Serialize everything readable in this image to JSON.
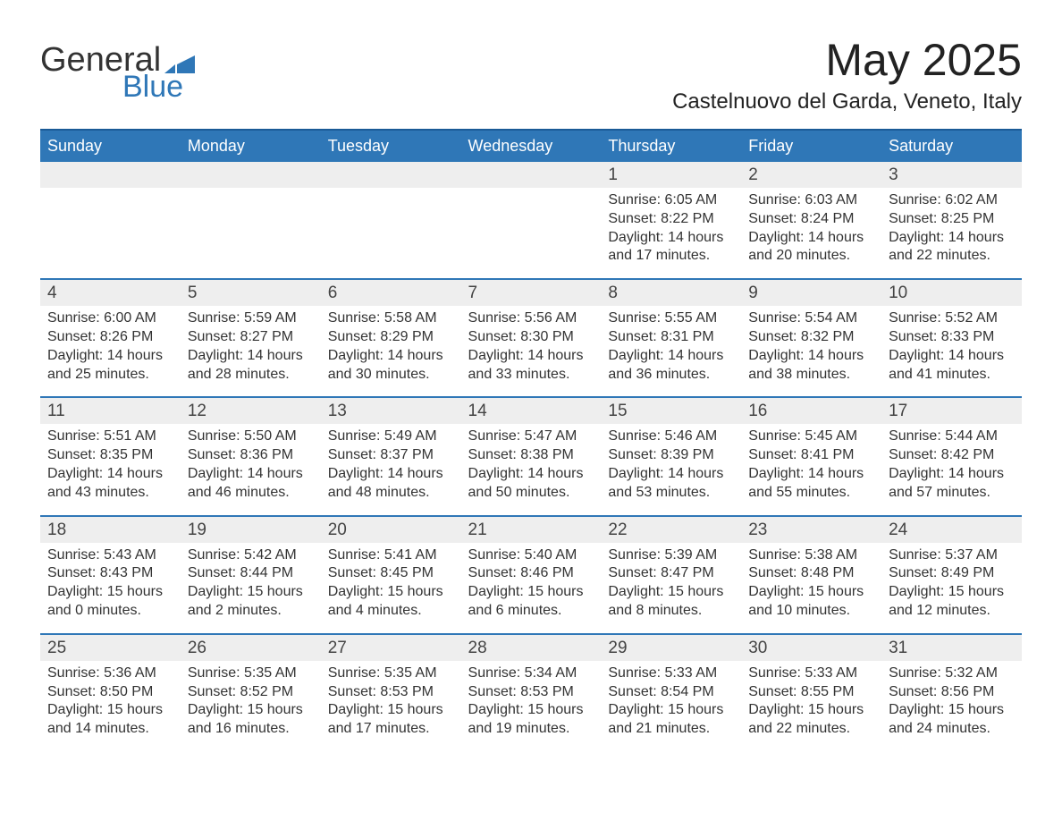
{
  "brand": {
    "word1": "General",
    "word2": "Blue"
  },
  "title": {
    "month": "May 2025",
    "location": "Castelnuovo del Garda, Veneto, Italy"
  },
  "weekdays": [
    "Sunday",
    "Monday",
    "Tuesday",
    "Wednesday",
    "Thursday",
    "Friday",
    "Saturday"
  ],
  "colors": {
    "header_bg": "#2f77b7",
    "header_text": "#ffffff",
    "rule": "#2f77b7",
    "alt_row": "#eeeeee",
    "text": "#333333",
    "logo_accent": "#2f77b7"
  },
  "grid": [
    [
      {
        "day": "",
        "sunrise": "",
        "sunset": "",
        "daylight": ""
      },
      {
        "day": "",
        "sunrise": "",
        "sunset": "",
        "daylight": ""
      },
      {
        "day": "",
        "sunrise": "",
        "sunset": "",
        "daylight": ""
      },
      {
        "day": "",
        "sunrise": "",
        "sunset": "",
        "daylight": ""
      },
      {
        "day": "1",
        "sunrise": "Sunrise: 6:05 AM",
        "sunset": "Sunset: 8:22 PM",
        "daylight": "Daylight: 14 hours and 17 minutes."
      },
      {
        "day": "2",
        "sunrise": "Sunrise: 6:03 AM",
        "sunset": "Sunset: 8:24 PM",
        "daylight": "Daylight: 14 hours and 20 minutes."
      },
      {
        "day": "3",
        "sunrise": "Sunrise: 6:02 AM",
        "sunset": "Sunset: 8:25 PM",
        "daylight": "Daylight: 14 hours and 22 minutes."
      }
    ],
    [
      {
        "day": "4",
        "sunrise": "Sunrise: 6:00 AM",
        "sunset": "Sunset: 8:26 PM",
        "daylight": "Daylight: 14 hours and 25 minutes."
      },
      {
        "day": "5",
        "sunrise": "Sunrise: 5:59 AM",
        "sunset": "Sunset: 8:27 PM",
        "daylight": "Daylight: 14 hours and 28 minutes."
      },
      {
        "day": "6",
        "sunrise": "Sunrise: 5:58 AM",
        "sunset": "Sunset: 8:29 PM",
        "daylight": "Daylight: 14 hours and 30 minutes."
      },
      {
        "day": "7",
        "sunrise": "Sunrise: 5:56 AM",
        "sunset": "Sunset: 8:30 PM",
        "daylight": "Daylight: 14 hours and 33 minutes."
      },
      {
        "day": "8",
        "sunrise": "Sunrise: 5:55 AM",
        "sunset": "Sunset: 8:31 PM",
        "daylight": "Daylight: 14 hours and 36 minutes."
      },
      {
        "day": "9",
        "sunrise": "Sunrise: 5:54 AM",
        "sunset": "Sunset: 8:32 PM",
        "daylight": "Daylight: 14 hours and 38 minutes."
      },
      {
        "day": "10",
        "sunrise": "Sunrise: 5:52 AM",
        "sunset": "Sunset: 8:33 PM",
        "daylight": "Daylight: 14 hours and 41 minutes."
      }
    ],
    [
      {
        "day": "11",
        "sunrise": "Sunrise: 5:51 AM",
        "sunset": "Sunset: 8:35 PM",
        "daylight": "Daylight: 14 hours and 43 minutes."
      },
      {
        "day": "12",
        "sunrise": "Sunrise: 5:50 AM",
        "sunset": "Sunset: 8:36 PM",
        "daylight": "Daylight: 14 hours and 46 minutes."
      },
      {
        "day": "13",
        "sunrise": "Sunrise: 5:49 AM",
        "sunset": "Sunset: 8:37 PM",
        "daylight": "Daylight: 14 hours and 48 minutes."
      },
      {
        "day": "14",
        "sunrise": "Sunrise: 5:47 AM",
        "sunset": "Sunset: 8:38 PM",
        "daylight": "Daylight: 14 hours and 50 minutes."
      },
      {
        "day": "15",
        "sunrise": "Sunrise: 5:46 AM",
        "sunset": "Sunset: 8:39 PM",
        "daylight": "Daylight: 14 hours and 53 minutes."
      },
      {
        "day": "16",
        "sunrise": "Sunrise: 5:45 AM",
        "sunset": "Sunset: 8:41 PM",
        "daylight": "Daylight: 14 hours and 55 minutes."
      },
      {
        "day": "17",
        "sunrise": "Sunrise: 5:44 AM",
        "sunset": "Sunset: 8:42 PM",
        "daylight": "Daylight: 14 hours and 57 minutes."
      }
    ],
    [
      {
        "day": "18",
        "sunrise": "Sunrise: 5:43 AM",
        "sunset": "Sunset: 8:43 PM",
        "daylight": "Daylight: 15 hours and 0 minutes."
      },
      {
        "day": "19",
        "sunrise": "Sunrise: 5:42 AM",
        "sunset": "Sunset: 8:44 PM",
        "daylight": "Daylight: 15 hours and 2 minutes."
      },
      {
        "day": "20",
        "sunrise": "Sunrise: 5:41 AM",
        "sunset": "Sunset: 8:45 PM",
        "daylight": "Daylight: 15 hours and 4 minutes."
      },
      {
        "day": "21",
        "sunrise": "Sunrise: 5:40 AM",
        "sunset": "Sunset: 8:46 PM",
        "daylight": "Daylight: 15 hours and 6 minutes."
      },
      {
        "day": "22",
        "sunrise": "Sunrise: 5:39 AM",
        "sunset": "Sunset: 8:47 PM",
        "daylight": "Daylight: 15 hours and 8 minutes."
      },
      {
        "day": "23",
        "sunrise": "Sunrise: 5:38 AM",
        "sunset": "Sunset: 8:48 PM",
        "daylight": "Daylight: 15 hours and 10 minutes."
      },
      {
        "day": "24",
        "sunrise": "Sunrise: 5:37 AM",
        "sunset": "Sunset: 8:49 PM",
        "daylight": "Daylight: 15 hours and 12 minutes."
      }
    ],
    [
      {
        "day": "25",
        "sunrise": "Sunrise: 5:36 AM",
        "sunset": "Sunset: 8:50 PM",
        "daylight": "Daylight: 15 hours and 14 minutes."
      },
      {
        "day": "26",
        "sunrise": "Sunrise: 5:35 AM",
        "sunset": "Sunset: 8:52 PM",
        "daylight": "Daylight: 15 hours and 16 minutes."
      },
      {
        "day": "27",
        "sunrise": "Sunrise: 5:35 AM",
        "sunset": "Sunset: 8:53 PM",
        "daylight": "Daylight: 15 hours and 17 minutes."
      },
      {
        "day": "28",
        "sunrise": "Sunrise: 5:34 AM",
        "sunset": "Sunset: 8:53 PM",
        "daylight": "Daylight: 15 hours and 19 minutes."
      },
      {
        "day": "29",
        "sunrise": "Sunrise: 5:33 AM",
        "sunset": "Sunset: 8:54 PM",
        "daylight": "Daylight: 15 hours and 21 minutes."
      },
      {
        "day": "30",
        "sunrise": "Sunrise: 5:33 AM",
        "sunset": "Sunset: 8:55 PM",
        "daylight": "Daylight: 15 hours and 22 minutes."
      },
      {
        "day": "31",
        "sunrise": "Sunrise: 5:32 AM",
        "sunset": "Sunset: 8:56 PM",
        "daylight": "Daylight: 15 hours and 24 minutes."
      }
    ]
  ]
}
